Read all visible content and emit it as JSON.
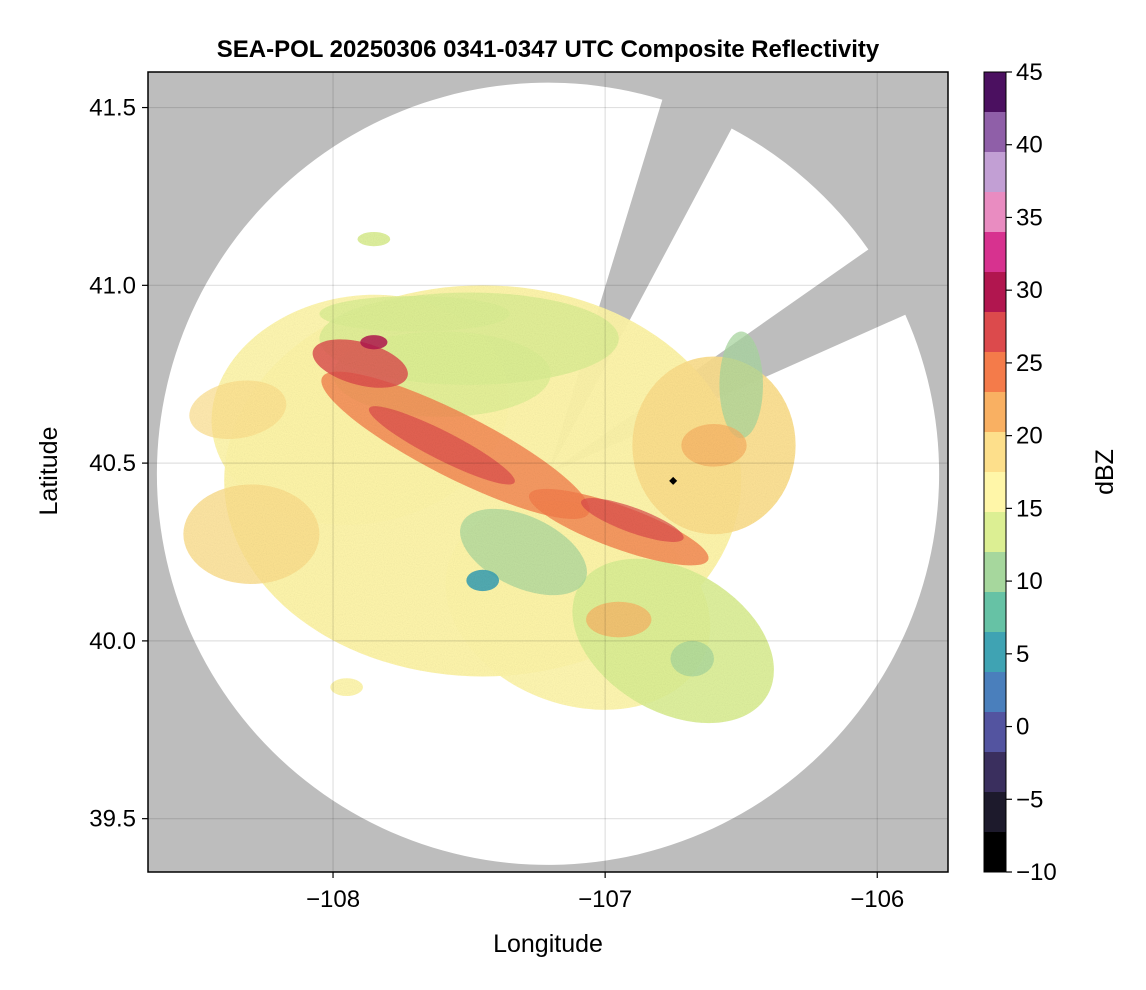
{
  "chart_data": {
    "type": "heatmap",
    "title": "SEA-POL 20250306 0341-0347 UTC Composite Reflectivity",
    "xlabel": "Longitude",
    "ylabel": "Latitude",
    "xlim": [
      -108.68,
      -105.74
    ],
    "ylim": [
      39.35,
      41.6
    ],
    "xticks": [
      -108,
      -107,
      -106
    ],
    "xtick_labels": [
      "−108",
      "−107",
      "−106"
    ],
    "yticks": [
      39.5,
      40.0,
      40.5,
      41.0,
      41.5
    ],
    "ytick_labels": [
      "39.5",
      "40.0",
      "40.5",
      "41.0",
      "41.5"
    ],
    "grid": true,
    "background_color": "#bdbdbd",
    "radar_site": {
      "lon": -107.21,
      "lat": 40.47
    },
    "radar_range_deg_lat": 1.1,
    "blocked_sectors_deg_from_north": [
      [
        17,
        28
      ],
      [
        55,
        66
      ]
    ],
    "marker": {
      "lon": -106.75,
      "lat": 40.45,
      "symbol": "diamond",
      "color": "#000000"
    },
    "colorbar": {
      "label": "dBZ",
      "range": [
        -10,
        45
      ],
      "ticks": [
        -10,
        -5,
        0,
        5,
        10,
        15,
        20,
        25,
        30,
        35,
        40,
        45
      ],
      "tick_labels": [
        "−10",
        "−5",
        "0",
        "5",
        "10",
        "15",
        "20",
        "25",
        "30",
        "35",
        "40",
        "45"
      ],
      "colormap": [
        "#000000",
        "#1d1a2c",
        "#3a2f5e",
        "#5354a0",
        "#4a7fbc",
        "#3fa3b3",
        "#66c2a5",
        "#a6d79d",
        "#dcef93",
        "#fff6a8",
        "#fddf8b",
        "#f9b062",
        "#f47b4a",
        "#dc4a4c",
        "#b1164f",
        "#d7328f",
        "#e98cc1",
        "#c29fd4",
        "#8f5fa8",
        "#4b1060"
      ]
    }
  }
}
